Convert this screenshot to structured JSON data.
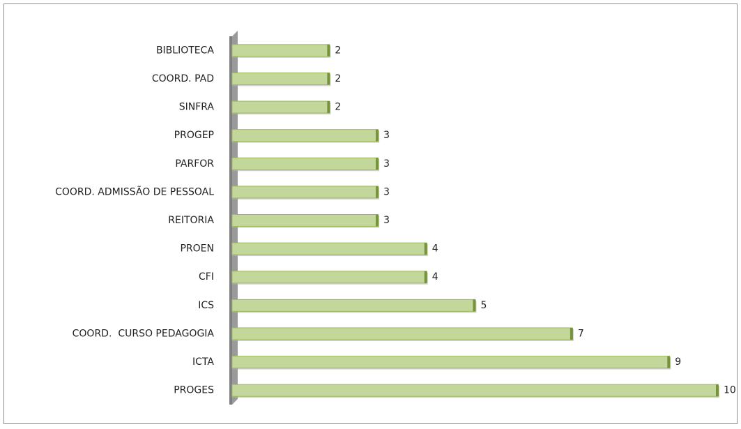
{
  "chart_data": {
    "type": "bar",
    "orientation": "horizontal",
    "categories": [
      "BIBLIOTECA",
      "COORD. PAD",
      "SINFRA",
      "PROGEP",
      "PARFOR",
      "COORD. ADMISSÃO DE PESSOAL",
      "REITORIA",
      "PROEN",
      "CFI",
      "ICS",
      "COORD.  CURSO PEDAGOGIA",
      "ICTA",
      "PROGES"
    ],
    "values": [
      2,
      2,
      2,
      3,
      3,
      3,
      3,
      4,
      4,
      5,
      7,
      9,
      10
    ],
    "color": "#c4d79b"
  }
}
